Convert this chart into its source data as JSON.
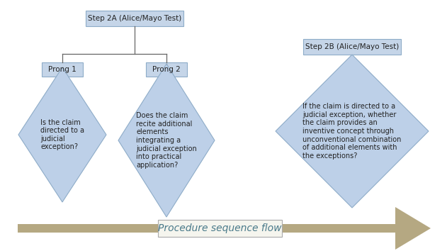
{
  "bg_color": "#ffffff",
  "box_fill": "#c5d5e8",
  "box_edge": "#8eacc8",
  "diamond_fill": "#bdd0e8",
  "diamond_edge": "#8eacc8",
  "arrow_color": "#b5a882",
  "arrow_text_color": "#4a7a8a",
  "line_color": "#666666",
  "step2a_label": "Step 2A (Alice/Mayo Test)",
  "step2b_label": "Step 2B (Alice/Mayo Test)",
  "prong1_label": "Prong 1",
  "prong2_label": "Prong 2",
  "diamond1_text": "Is the claim\ndirected to a\njudicial\nexception?",
  "diamond2_text": "Does the claim\nrecite additional\nelements\nintegrating a\njudicial exception\ninto practical\napplication?",
  "diamond3_text": "If the claim is directed to a\njudicial exception, whether\nthe claim provides an\ninventive concept through\nunconventional combination\nof additional elements with\nthe exceptions?",
  "arrow_label": "Procedure sequence flow",
  "font_size_box": 7.5,
  "font_size_prong": 7.5,
  "font_size_diamond1": 7,
  "font_size_diamond2": 7,
  "font_size_diamond3": 7,
  "font_size_arrow": 10
}
